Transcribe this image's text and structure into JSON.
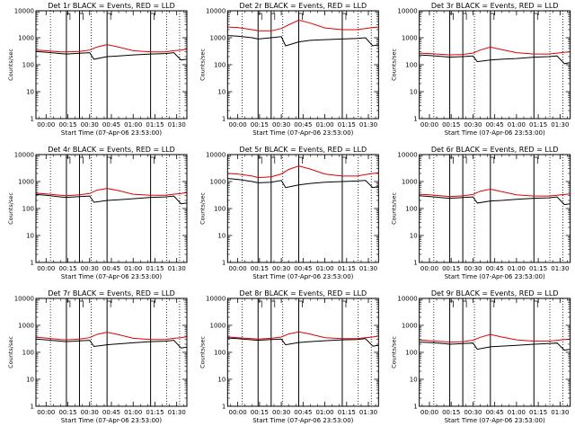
{
  "chart_data": [
    {
      "type": "line",
      "title": "Det 1r BLACK = Events, RED = LLD",
      "xlabel": "Start Time (07-Apr-06 23:53:00)",
      "ylabel": "Counts/sec",
      "yscale": "log",
      "ylim": [
        1,
        10000
      ],
      "xlim": [
        -7,
        97
      ],
      "xticks": [
        "00:00",
        "00:15",
        "00:30",
        "00:45",
        "01:00",
        "01:15",
        "01:30"
      ],
      "yticks": [
        "1",
        "10",
        "100",
        "1000",
        "10000"
      ],
      "dotted_vlines": [
        3,
        31,
        83,
        92
      ],
      "solid_vlines": [
        14,
        23,
        42,
        72
      ],
      "series": [
        {
          "color": "#000000",
          "x": [
            -7,
            0,
            10,
            14,
            23,
            30,
            33,
            42,
            50,
            60,
            72,
            82,
            88,
            93,
            97
          ],
          "y": [
            310,
            290,
            260,
            250,
            265,
            280,
            160,
            200,
            210,
            230,
            250,
            260,
            280,
            150,
            160
          ]
        },
        {
          "color": "#e00000",
          "x": [
            -7,
            0,
            10,
            14,
            23,
            30,
            35,
            42,
            50,
            60,
            72,
            82,
            88,
            93,
            97
          ],
          "y": [
            350,
            330,
            300,
            300,
            310,
            350,
            450,
            560,
            450,
            330,
            300,
            300,
            330,
            350,
            380
          ]
        }
      ]
    },
    {
      "type": "line",
      "title": "Det 2r BLACK = Events, RED = LLD",
      "xlabel": "Start Time (07-Apr-06 23:53:00)",
      "ylabel": "Counts/sec",
      "yscale": "log",
      "ylim": [
        1,
        10000
      ],
      "xlim": [
        -7,
        97
      ],
      "xticks": [
        "00:00",
        "00:15",
        "00:30",
        "00:45",
        "01:00",
        "01:15",
        "01:30"
      ],
      "yticks": [
        "1",
        "10",
        "100",
        "1000",
        "10000"
      ],
      "dotted_vlines": [
        3,
        31,
        83,
        92
      ],
      "solid_vlines": [
        14,
        23,
        42,
        72
      ],
      "series": [
        {
          "color": "#000000",
          "x": [
            -7,
            0,
            10,
            14,
            23,
            30,
            33,
            42,
            50,
            60,
            72,
            82,
            88,
            93,
            97
          ],
          "y": [
            1200,
            1150,
            1000,
            900,
            1000,
            1100,
            500,
            700,
            800,
            850,
            900,
            950,
            1000,
            500,
            550
          ]
        },
        {
          "color": "#e00000",
          "x": [
            -7,
            0,
            10,
            14,
            23,
            30,
            35,
            42,
            50,
            60,
            72,
            82,
            88,
            93,
            97
          ],
          "y": [
            2500,
            2400,
            2000,
            1800,
            1800,
            2200,
            3000,
            4500,
            3500,
            2300,
            2000,
            2000,
            2200,
            2400,
            2500
          ]
        }
      ]
    },
    {
      "type": "line",
      "title": "Det 3r BLACK = Events, RED = LLD",
      "xlabel": "Start Time (07-Apr-06 23:53:00)",
      "ylabel": "Counts/sec",
      "yscale": "log",
      "ylim": [
        1,
        10000
      ],
      "xlim": [
        -7,
        97
      ],
      "xticks": [
        "00:00",
        "00:15",
        "00:30",
        "00:45",
        "01:00",
        "01:15",
        "01:30"
      ],
      "yticks": [
        "1",
        "10",
        "100",
        "1000",
        "10000"
      ],
      "dotted_vlines": [
        3,
        31,
        83,
        92
      ],
      "solid_vlines": [
        14,
        23,
        42,
        72
      ],
      "series": [
        {
          "color": "#000000",
          "x": [
            -7,
            0,
            10,
            14,
            23,
            30,
            33,
            42,
            50,
            60,
            72,
            82,
            88,
            93,
            97
          ],
          "y": [
            230,
            220,
            200,
            190,
            200,
            210,
            130,
            150,
            160,
            170,
            190,
            200,
            210,
            110,
            120
          ]
        },
        {
          "color": "#e00000",
          "x": [
            -7,
            0,
            10,
            14,
            23,
            30,
            35,
            42,
            50,
            60,
            72,
            82,
            88,
            93,
            97
          ],
          "y": [
            270,
            260,
            240,
            230,
            240,
            270,
            350,
            450,
            360,
            280,
            250,
            250,
            270,
            290,
            300
          ]
        }
      ]
    },
    {
      "type": "line",
      "title": "Det 4r BLACK = Events, RED = LLD",
      "xlabel": "Start Time (07-Apr-06 23:53:00)",
      "ylabel": "Counts/sec",
      "yscale": "log",
      "ylim": [
        1,
        10000
      ],
      "xlim": [
        -7,
        97
      ],
      "xticks": [
        "00:00",
        "00:15",
        "00:30",
        "00:45",
        "01:00",
        "01:15",
        "01:30"
      ],
      "yticks": [
        "1",
        "10",
        "100",
        "1000",
        "10000"
      ],
      "dotted_vlines": [
        3,
        31,
        83,
        92
      ],
      "solid_vlines": [
        14,
        23,
        42,
        72
      ],
      "series": [
        {
          "color": "#000000",
          "x": [
            -7,
            0,
            10,
            14,
            23,
            30,
            33,
            42,
            50,
            60,
            72,
            82,
            88,
            93,
            97
          ],
          "y": [
            330,
            310,
            270,
            260,
            275,
            290,
            170,
            200,
            210,
            230,
            260,
            270,
            290,
            150,
            160
          ]
        },
        {
          "color": "#e00000",
          "x": [
            -7,
            0,
            10,
            14,
            23,
            30,
            35,
            42,
            50,
            60,
            72,
            82,
            88,
            93,
            97
          ],
          "y": [
            370,
            350,
            310,
            300,
            320,
            360,
            480,
            560,
            460,
            340,
            310,
            310,
            340,
            360,
            390
          ]
        }
      ]
    },
    {
      "type": "line",
      "title": "Det 5r BLACK = Events, RED = LLD",
      "xlabel": "Start Time (07-Apr-06 23:53:00)",
      "ylabel": "Counts/sec",
      "yscale": "log",
      "ylim": [
        1,
        10000
      ],
      "xlim": [
        -7,
        97
      ],
      "xticks": [
        "00:00",
        "00:15",
        "00:30",
        "00:45",
        "01:00",
        "01:15",
        "01:30"
      ],
      "yticks": [
        "1",
        "10",
        "100",
        "1000",
        "10000"
      ],
      "dotted_vlines": [
        3,
        31,
        83,
        92
      ],
      "solid_vlines": [
        14,
        23,
        42,
        72
      ],
      "series": [
        {
          "color": "#000000",
          "x": [
            -7,
            0,
            10,
            14,
            23,
            30,
            33,
            42,
            50,
            60,
            72,
            82,
            88,
            93,
            97
          ],
          "y": [
            1300,
            1200,
            1000,
            900,
            950,
            1100,
            600,
            750,
            850,
            950,
            1000,
            1050,
            1100,
            600,
            650
          ]
        },
        {
          "color": "#e00000",
          "x": [
            -7,
            0,
            10,
            14,
            23,
            30,
            35,
            42,
            50,
            60,
            72,
            82,
            88,
            93,
            97
          ],
          "y": [
            2000,
            1900,
            1600,
            1400,
            1500,
            1900,
            2800,
            3800,
            2900,
            1900,
            1600,
            1600,
            1800,
            2000,
            2100
          ]
        }
      ]
    },
    {
      "type": "line",
      "title": "Det 6r BLACK = Events, RED = LLD",
      "xlabel": "Start Time (07-Apr-06 23:53:00)",
      "ylabel": "Counts/sec",
      "yscale": "log",
      "ylim": [
        1,
        10000
      ],
      "xlim": [
        -7,
        97
      ],
      "xticks": [
        "00:00",
        "00:15",
        "00:30",
        "00:45",
        "01:00",
        "01:15",
        "01:30"
      ],
      "yticks": [
        "1",
        "10",
        "100",
        "1000",
        "10000"
      ],
      "dotted_vlines": [
        3,
        31,
        83,
        92
      ],
      "solid_vlines": [
        14,
        23,
        42,
        72
      ],
      "series": [
        {
          "color": "#000000",
          "x": [
            -7,
            0,
            10,
            14,
            23,
            30,
            33,
            42,
            50,
            60,
            72,
            82,
            88,
            93,
            97
          ],
          "y": [
            300,
            280,
            250,
            240,
            255,
            270,
            160,
            190,
            200,
            220,
            240,
            250,
            270,
            140,
            150
          ]
        },
        {
          "color": "#e00000",
          "x": [
            -7,
            0,
            10,
            14,
            23,
            30,
            35,
            42,
            50,
            60,
            72,
            82,
            88,
            93,
            97
          ],
          "y": [
            340,
            320,
            290,
            280,
            295,
            330,
            440,
            520,
            420,
            320,
            290,
            290,
            310,
            330,
            350
          ]
        }
      ]
    },
    {
      "type": "line",
      "title": "Det 7r BLACK = Events, RED = LLD",
      "xlabel": "Start Time (07-Apr-06 23:53:00)",
      "ylabel": "Counts/sec",
      "yscale": "log",
      "ylim": [
        1,
        10000
      ],
      "xlim": [
        -7,
        97
      ],
      "xticks": [
        "00:00",
        "00:15",
        "00:30",
        "00:45",
        "01:00",
        "01:15",
        "01:30"
      ],
      "yticks": [
        "1",
        "10",
        "100",
        "1000",
        "10000"
      ],
      "dotted_vlines": [
        3,
        31,
        83,
        92
      ],
      "solid_vlines": [
        14,
        23,
        42,
        72
      ],
      "series": [
        {
          "color": "#000000",
          "x": [
            -7,
            0,
            10,
            14,
            23,
            30,
            33,
            42,
            50,
            60,
            72,
            82,
            88,
            93,
            97
          ],
          "y": [
            310,
            290,
            260,
            250,
            265,
            280,
            165,
            190,
            205,
            225,
            250,
            260,
            280,
            145,
            155
          ]
        },
        {
          "color": "#e00000",
          "x": [
            -7,
            0,
            10,
            14,
            23,
            30,
            35,
            42,
            50,
            60,
            72,
            82,
            88,
            93,
            97
          ],
          "y": [
            360,
            340,
            300,
            290,
            310,
            350,
            460,
            560,
            450,
            330,
            300,
            300,
            330,
            350,
            380
          ]
        }
      ]
    },
    {
      "type": "line",
      "title": "Det 8r BLACK = Events, RED = LLD",
      "xlabel": "Start Time (07-Apr-06 23:53:00)",
      "ylabel": "Counts/sec",
      "yscale": "log",
      "ylim": [
        1,
        10000
      ],
      "xlim": [
        -7,
        97
      ],
      "xticks": [
        "00:00",
        "00:15",
        "00:30",
        "00:45",
        "01:00",
        "01:15",
        "01:30"
      ],
      "yticks": [
        "1",
        "10",
        "100",
        "1000",
        "10000"
      ],
      "dotted_vlines": [
        3,
        31,
        83,
        92
      ],
      "solid_vlines": [
        14,
        23,
        42,
        72
      ],
      "series": [
        {
          "color": "#000000",
          "x": [
            -7,
            0,
            10,
            14,
            23,
            30,
            33,
            42,
            50,
            60,
            72,
            82,
            88,
            93,
            97
          ],
          "y": [
            340,
            320,
            290,
            280,
            300,
            310,
            190,
            230,
            250,
            270,
            290,
            300,
            320,
            170,
            180
          ]
        },
        {
          "color": "#e00000",
          "x": [
            -7,
            0,
            10,
            14,
            23,
            30,
            35,
            42,
            50,
            60,
            72,
            82,
            88,
            93,
            97
          ],
          "y": [
            370,
            350,
            320,
            310,
            330,
            370,
            480,
            570,
            470,
            350,
            320,
            320,
            350,
            370,
            400
          ]
        }
      ]
    },
    {
      "type": "line",
      "title": "Det 9r BLACK = Events, RED = LLD",
      "xlabel": "Start Time (07-Apr-06 23:53:00)",
      "ylabel": "Counts/sec",
      "yscale": "log",
      "ylim": [
        1,
        10000
      ],
      "xlim": [
        -7,
        97
      ],
      "xticks": [
        "00:00",
        "00:15",
        "00:30",
        "00:45",
        "01:00",
        "01:15",
        "01:30"
      ],
      "yticks": [
        "1",
        "10",
        "100",
        "1000",
        "10000"
      ],
      "dotted_vlines": [
        3,
        31,
        83,
        92
      ],
      "solid_vlines": [
        14,
        23,
        42,
        72
      ],
      "series": [
        {
          "color": "#000000",
          "x": [
            -7,
            0,
            10,
            14,
            23,
            30,
            33,
            42,
            50,
            60,
            72,
            82,
            88,
            93,
            97
          ],
          "y": [
            240,
            230,
            210,
            200,
            210,
            220,
            130,
            160,
            170,
            180,
            200,
            210,
            220,
            120,
            130
          ]
        },
        {
          "color": "#e00000",
          "x": [
            -7,
            0,
            10,
            14,
            23,
            30,
            35,
            42,
            50,
            60,
            72,
            82,
            88,
            93,
            97
          ],
          "y": [
            290,
            270,
            250,
            240,
            250,
            280,
            360,
            460,
            370,
            290,
            260,
            260,
            280,
            300,
            310
          ]
        }
      ]
    }
  ]
}
